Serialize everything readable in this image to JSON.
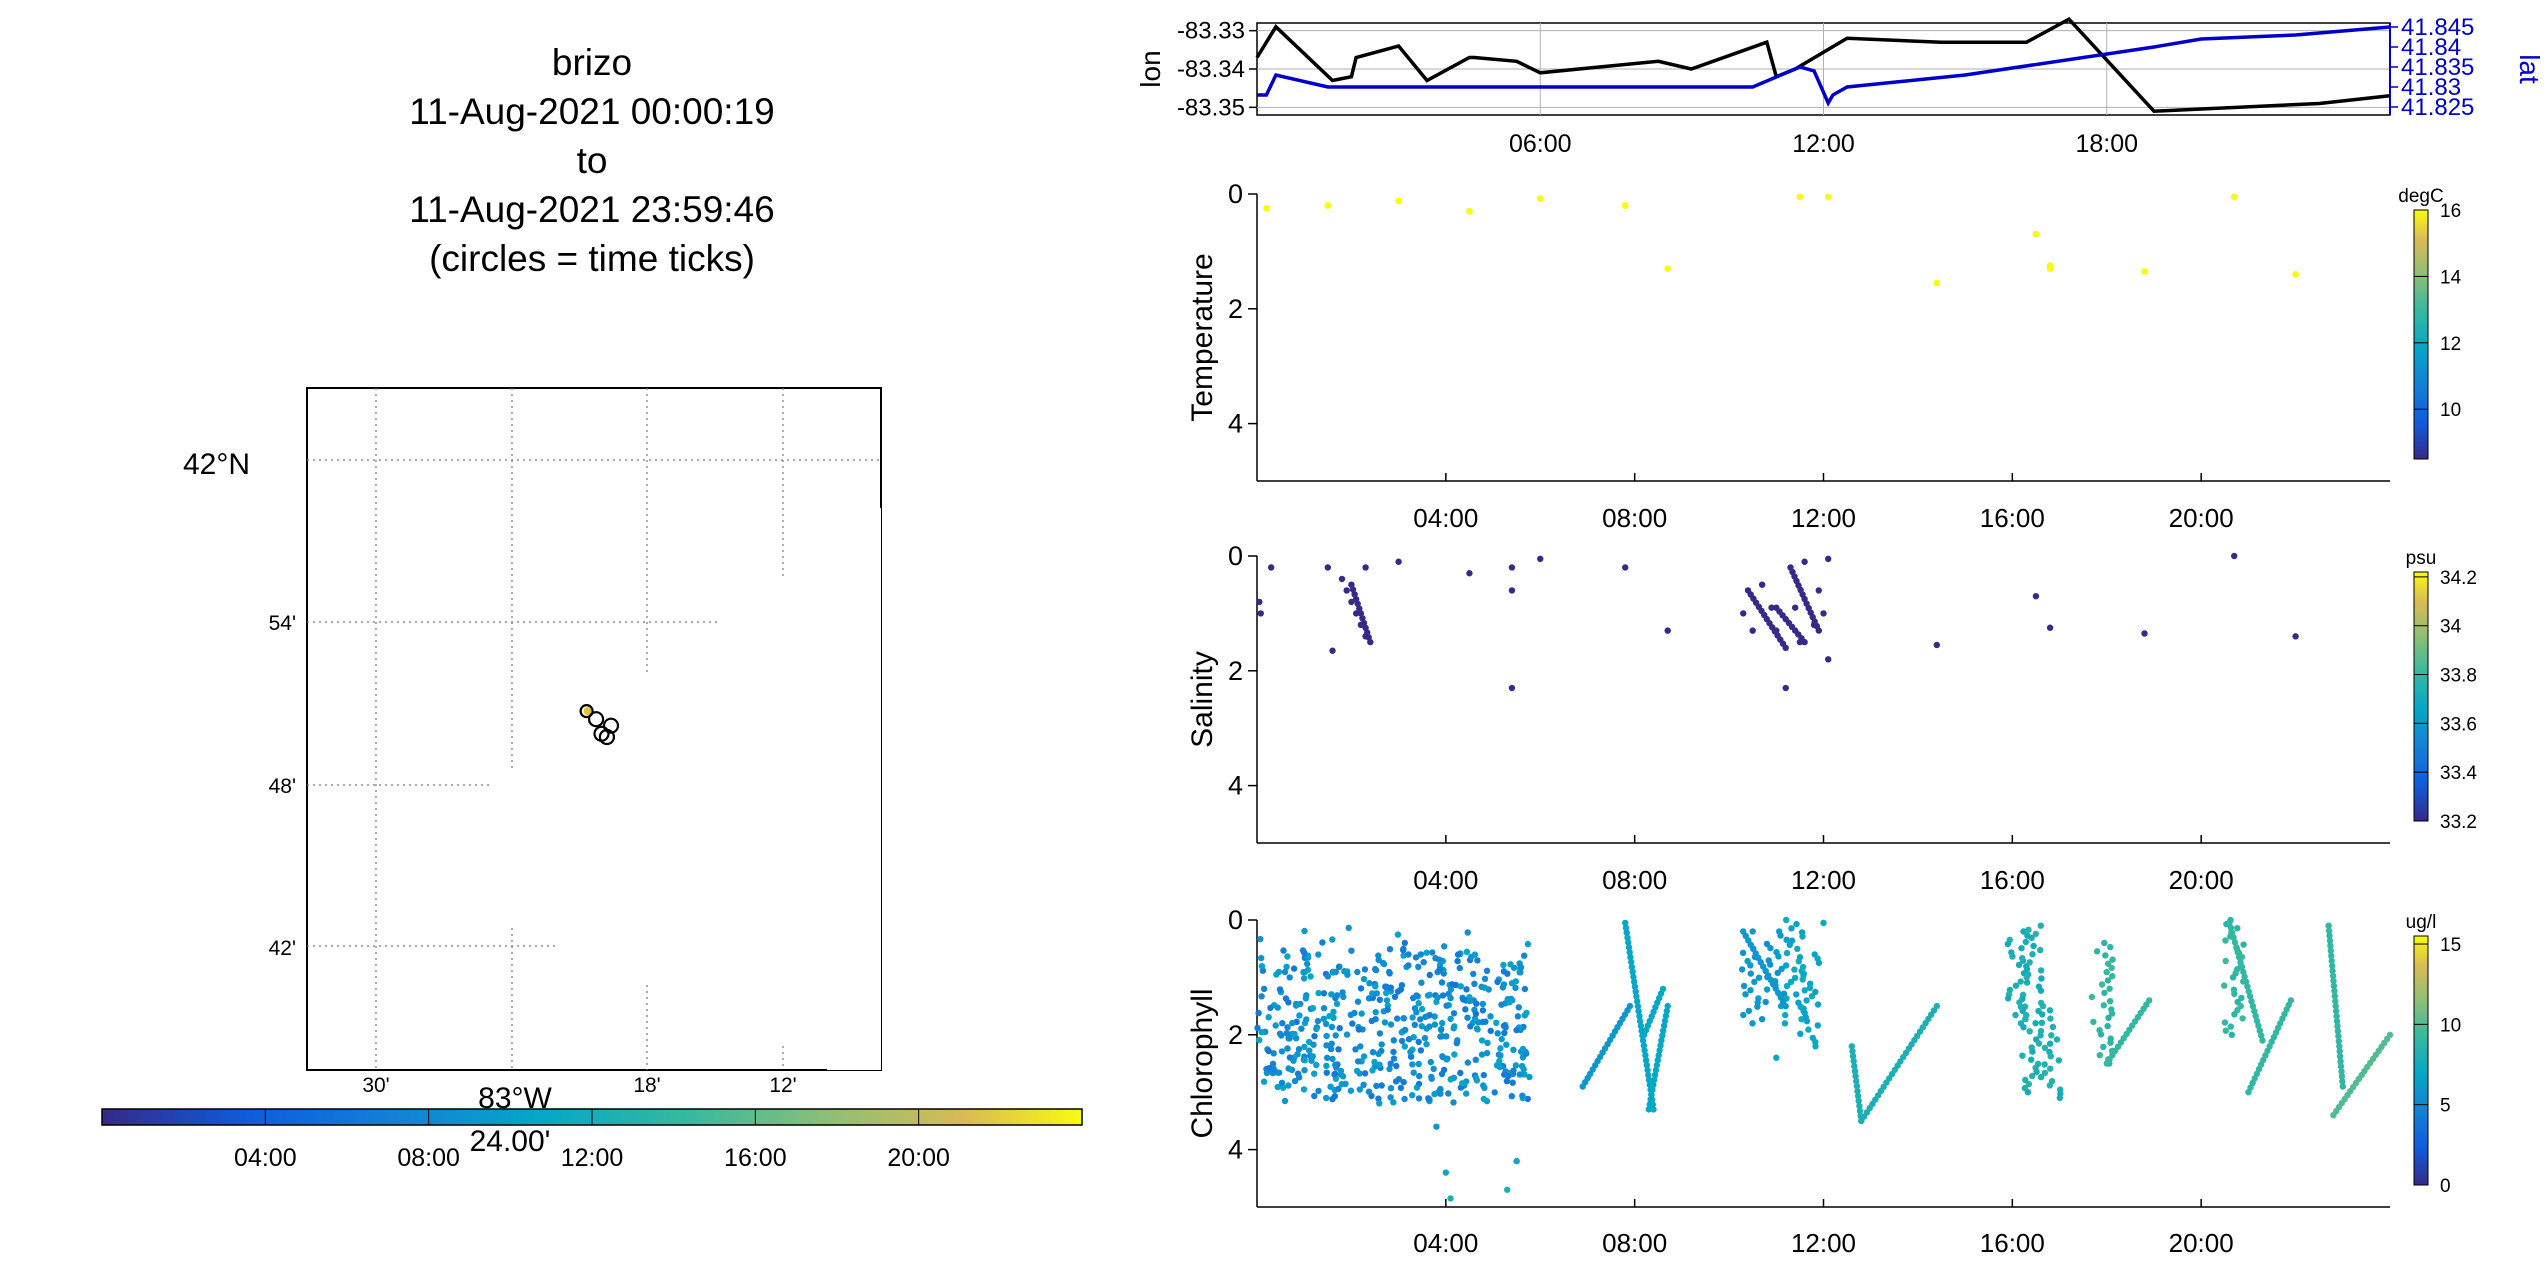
{
  "header": {
    "lines": [
      "brizo",
      "11-Aug-2021 00:00:19",
      "to",
      "11-Aug-2021 23:59:46",
      "(circles = time ticks)"
    ]
  },
  "colors": {
    "lon_line": "#000000",
    "lat_line": "#0000cc",
    "track_marker": "#e3c233",
    "axis": "#000000",
    "grid": "#b0b0b0"
  },
  "map": {
    "lat_ticks": [
      "42°N",
      "54'",
      "48'",
      "42'"
    ],
    "lon_ticks": [
      "30'",
      "18'",
      "12'"
    ],
    "lon_center_label": "83°W",
    "lon_center_sub": "24.00'",
    "colorbar_ticks": [
      "04:00",
      "08:00",
      "12:00",
      "16:00",
      "20:00"
    ],
    "track": [
      {
        "lon": -83.345,
        "lat": 41.845,
        "kind": "start"
      },
      {
        "lon": -83.338,
        "lat": 41.84,
        "kind": "tick"
      },
      {
        "lon": -83.334,
        "lat": 41.831,
        "kind": "tick"
      },
      {
        "lon": -83.33,
        "lat": 41.829,
        "kind": "tick"
      },
      {
        "lon": -83.327,
        "lat": 41.836,
        "kind": "tick"
      }
    ]
  },
  "chart_data": [
    {
      "type": "line",
      "name": "lon-lat",
      "xlim": [
        0,
        24
      ],
      "xticks": [
        "06:00",
        "12:00",
        "18:00"
      ],
      "yleft_label": "lon",
      "yleft_ticks": [
        "-83.33",
        "-83.34",
        "-83.35"
      ],
      "yleft_lim": [
        -83.352,
        -83.328
      ],
      "yright_label": "lat",
      "yright_ticks": [
        "41.845",
        "41.84",
        "41.835",
        "41.83",
        "41.825"
      ],
      "yright_lim": [
        41.823,
        41.846
      ],
      "series": [
        {
          "name": "lon",
          "axis": "left",
          "x": [
            0,
            0.4,
            1.6,
            2.0,
            2.1,
            3.0,
            3.6,
            4.5,
            4.6,
            5.5,
            6.0,
            8.5,
            9.2,
            10.8,
            11.0,
            11.4,
            12.5,
            14.5,
            16.3,
            17.2,
            19.0,
            22.5,
            24.0
          ],
          "y": [
            -83.337,
            -83.329,
            -83.343,
            -83.342,
            -83.337,
            -83.334,
            -83.343,
            -83.337,
            -83.337,
            -83.338,
            -83.341,
            -83.338,
            -83.34,
            -83.333,
            -83.342,
            -83.34,
            -83.332,
            -83.333,
            -83.333,
            -83.327,
            -83.351,
            -83.349,
            -83.347
          ]
        },
        {
          "name": "lat",
          "axis": "right",
          "x": [
            0,
            0.2,
            0.4,
            1.5,
            3.0,
            4.5,
            5.0,
            8.0,
            10.5,
            11.5,
            11.8,
            12.1,
            12.2,
            12.5,
            15.0,
            19.0,
            20.0,
            22.0,
            24.0
          ],
          "y": [
            41.828,
            41.828,
            41.833,
            41.83,
            41.83,
            41.83,
            41.83,
            41.83,
            41.83,
            41.835,
            41.834,
            41.826,
            41.828,
            41.83,
            41.833,
            41.84,
            41.842,
            41.843,
            41.845
          ]
        }
      ]
    },
    {
      "type": "scatter",
      "name": "temperature",
      "ylabel": "Temperature",
      "xlim": [
        0,
        24
      ],
      "ylim": [
        0,
        5
      ],
      "yticks": [
        "0",
        "2",
        "4"
      ],
      "xticks": [
        "04:00",
        "08:00",
        "12:00",
        "16:00",
        "20:00"
      ],
      "colorbar_unit": "degC",
      "colorbar_ticks": [
        "16",
        "14",
        "12",
        "10"
      ],
      "colorbar_lim": [
        8.5,
        16
      ],
      "points": [
        [
          0.2,
          0.25,
          16
        ],
        [
          1.5,
          0.2,
          16
        ],
        [
          3.0,
          0.12,
          16
        ],
        [
          4.5,
          0.3,
          16
        ],
        [
          6.0,
          0.08,
          16
        ],
        [
          7.8,
          0.2,
          16
        ],
        [
          8.7,
          1.3,
          16
        ],
        [
          11.5,
          0.05,
          16
        ],
        [
          12.1,
          0.05,
          16
        ],
        [
          14.4,
          1.55,
          16
        ],
        [
          16.5,
          0.7,
          16
        ],
        [
          16.8,
          1.25,
          16
        ],
        [
          16.8,
          1.3,
          16
        ],
        [
          18.8,
          1.35,
          16
        ],
        [
          20.7,
          0.05,
          16
        ],
        [
          22.0,
          1.4,
          16
        ]
      ]
    },
    {
      "type": "scatter",
      "name": "salinity",
      "ylabel": "Salinity",
      "xlim": [
        0,
        24
      ],
      "ylim": [
        0,
        5
      ],
      "yticks": [
        "0",
        "2",
        "4"
      ],
      "xticks": [
        "04:00",
        "08:00",
        "12:00",
        "16:00",
        "20:00"
      ],
      "colorbar_unit": "psu",
      "colorbar_ticks": [
        "34.2",
        "34",
        "33.8",
        "33.6",
        "33.4",
        "33.2"
      ],
      "colorbar_lim": [
        33.2,
        34.22
      ],
      "points": [
        [
          0.05,
          0.8,
          33.2
        ],
        [
          0.08,
          1.0,
          33.2
        ],
        [
          0.3,
          0.2,
          33.2
        ],
        [
          1.5,
          0.2,
          33.2
        ],
        [
          1.6,
          1.65,
          33.2
        ],
        [
          1.8,
          0.4,
          33.2
        ],
        [
          1.9,
          0.6,
          33.2
        ],
        [
          2.0,
          0.8,
          33.2
        ],
        [
          2.1,
          1.0,
          33.2
        ],
        [
          2.2,
          1.2,
          33.2
        ],
        [
          2.3,
          1.4,
          33.2
        ],
        [
          2.3,
          0.2,
          33.2
        ],
        [
          3.0,
          0.1,
          33.2
        ],
        [
          4.5,
          0.3,
          33.2
        ],
        [
          5.4,
          0.2,
          33.2
        ],
        [
          5.4,
          0.6,
          33.2
        ],
        [
          5.4,
          2.3,
          33.2
        ],
        [
          6.0,
          0.05,
          33.2
        ],
        [
          7.8,
          0.2,
          33.2
        ],
        [
          8.7,
          1.3,
          33.2
        ],
        [
          10.3,
          1.0,
          33.2
        ],
        [
          10.5,
          1.3,
          33.2
        ],
        [
          10.7,
          0.5,
          33.2
        ],
        [
          10.9,
          0.9,
          33.2
        ],
        [
          11.0,
          1.3,
          33.2
        ],
        [
          11.2,
          2.3,
          33.2
        ],
        [
          11.4,
          0.9,
          33.2
        ],
        [
          11.5,
          1.5,
          33.2
        ],
        [
          11.6,
          0.1,
          33.2
        ],
        [
          11.8,
          1.2,
          33.2
        ],
        [
          11.9,
          0.6,
          33.2
        ],
        [
          12.0,
          1.0,
          33.2
        ],
        [
          12.1,
          1.8,
          33.2
        ],
        [
          12.1,
          0.05,
          33.2
        ],
        [
          14.4,
          1.55,
          33.2
        ],
        [
          16.5,
          0.7,
          33.2
        ],
        [
          16.8,
          1.25,
          33.2
        ],
        [
          18.8,
          1.35,
          33.2
        ],
        [
          20.7,
          0.0,
          33.2
        ],
        [
          22.0,
          1.4,
          33.2
        ]
      ],
      "segments": [
        [
          10.4,
          0.6,
          11.2,
          1.6
        ],
        [
          11.0,
          0.9,
          11.6,
          1.5
        ],
        [
          11.3,
          0.2,
          11.9,
          1.3
        ],
        [
          2.0,
          0.5,
          2.4,
          1.5
        ]
      ]
    },
    {
      "type": "scatter",
      "name": "chlorophyll",
      "ylabel": "Chlorophyll",
      "xlim": [
        0,
        24
      ],
      "ylim": [
        0,
        5
      ],
      "yticks": [
        "0",
        "2",
        "4"
      ],
      "xticks": [
        "04:00",
        "08:00",
        "12:00",
        "16:00",
        "20:00"
      ],
      "colorbar_unit": "ug/l",
      "colorbar_ticks": [
        "15",
        "10",
        "5",
        "0"
      ],
      "colorbar_lim": [
        0,
        15.5
      ],
      "cloud": {
        "x_range": [
          0,
          5.8
        ],
        "depth_range": [
          0.5,
          3.2
        ],
        "value_range": [
          4,
          7
        ],
        "count": 520
      },
      "points": [
        [
          3.8,
          3.6,
          6
        ],
        [
          4.0,
          4.4,
          7
        ],
        [
          4.1,
          4.85,
          8
        ],
        [
          5.3,
          4.7,
          8
        ],
        [
          5.5,
          4.2,
          7
        ],
        [
          10.5,
          0.2,
          6
        ],
        [
          11.0,
          2.4,
          7
        ],
        [
          12.0,
          0.05,
          7
        ]
      ],
      "segments": [
        [
          6.9,
          2.9,
          7.9,
          1.5,
          6
        ],
        [
          7.8,
          0.05,
          8.4,
          3.3,
          7
        ],
        [
          8.2,
          2.0,
          8.6,
          1.2,
          7
        ],
        [
          8.3,
          3.3,
          8.7,
          1.5,
          7
        ],
        [
          10.3,
          0.2,
          11.2,
          1.5,
          6
        ],
        [
          12.6,
          2.2,
          12.8,
          3.5,
          8
        ],
        [
          12.8,
          3.5,
          14.4,
          1.5,
          8
        ],
        [
          18.0,
          2.5,
          18.9,
          1.4,
          9
        ],
        [
          20.6,
          0.05,
          21.3,
          2.1,
          9
        ],
        [
          21.0,
          3.0,
          21.9,
          1.4,
          9
        ],
        [
          22.7,
          0.1,
          23.0,
          2.9,
          9
        ],
        [
          22.8,
          3.4,
          24.0,
          2.0,
          10
        ]
      ],
      "columns": [
        {
          "x": 10.5,
          "d0": 0.5,
          "d1": 1.8,
          "v": 6
        },
        {
          "x": 11.0,
          "d0": 0.2,
          "d1": 1.5,
          "v": 6
        },
        {
          "x": 11.4,
          "d0": 0.0,
          "d1": 1.8,
          "v": 7
        },
        {
          "x": 11.7,
          "d0": 0.6,
          "d1": 2.2,
          "v": 7
        },
        {
          "x": 16.1,
          "d0": 0.2,
          "d1": 1.8,
          "v": 8
        },
        {
          "x": 16.4,
          "d0": 0.1,
          "d1": 3.0,
          "v": 8
        },
        {
          "x": 16.8,
          "d0": 1.5,
          "d1": 3.1,
          "v": 8
        },
        {
          "x": 17.9,
          "d0": 0.4,
          "d1": 2.5,
          "v": 9
        },
        {
          "x": 20.7,
          "d0": 0.0,
          "d1": 2.0,
          "v": 9
        }
      ]
    }
  ]
}
